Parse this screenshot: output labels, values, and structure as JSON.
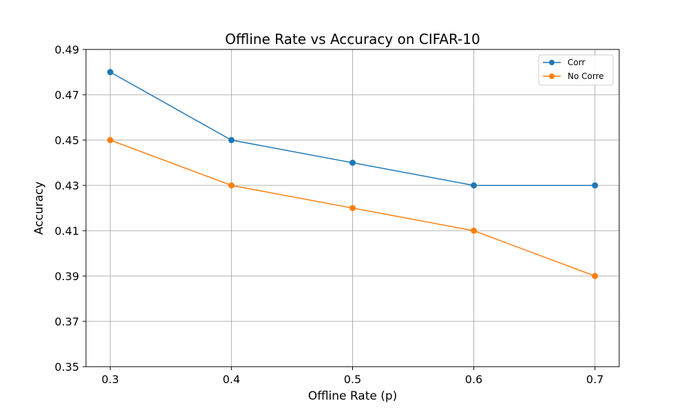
{
  "chart_data": {
    "type": "line",
    "title": "Offline Rate vs Accuracy on CIFAR-10",
    "xlabel": "Offline Rate (p)",
    "ylabel": "Accuracy",
    "x": [
      0.3,
      0.4,
      0.5,
      0.6,
      0.7
    ],
    "x_tick_labels": [
      "0.3",
      "0.4",
      "0.5",
      "0.6",
      "0.7"
    ],
    "xlim": [
      0.28,
      0.72
    ],
    "ylim": [
      0.35,
      0.49
    ],
    "y_ticks": [
      0.35,
      0.37,
      0.39,
      0.41,
      0.43,
      0.45,
      0.47,
      0.49
    ],
    "y_tick_labels": [
      "0.35",
      "0.37",
      "0.39",
      "0.41",
      "0.43",
      "0.45",
      "0.47",
      "0.49"
    ],
    "grid": true,
    "legend_position": "top-right",
    "series": [
      {
        "name": "Corr",
        "color": "#1f77b4",
        "values": [
          0.48,
          0.45,
          0.44,
          0.43,
          0.43
        ]
      },
      {
        "name": "No Corre",
        "color": "#ff7f0e",
        "values": [
          0.45,
          0.43,
          0.42,
          0.41,
          0.39
        ]
      }
    ]
  }
}
